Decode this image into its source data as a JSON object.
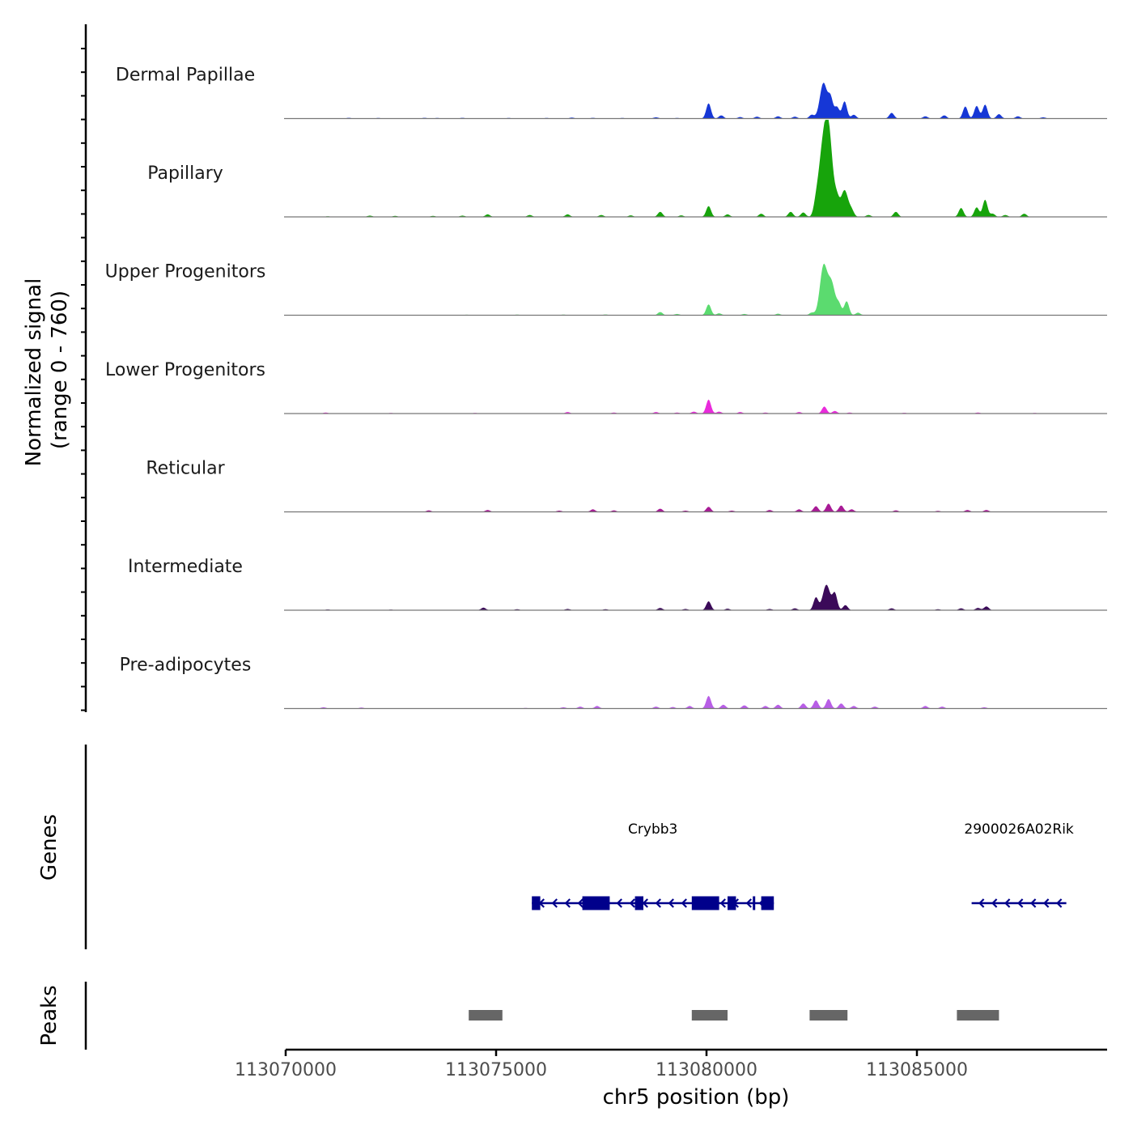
{
  "chart_data": {
    "type": "area",
    "title": "",
    "ylabel_line1": "Normalized signal",
    "ylabel_line2": "(range 0 - 760)",
    "y_range": [
      0,
      760
    ],
    "xlabel": "chr5 position (bp)",
    "xlim": [
      113070000,
      113089500
    ],
    "x_ticks": [
      113070000,
      113075000,
      113080000,
      113085000
    ],
    "x_tick_labels": [
      "113070000",
      "113075000",
      "113080000",
      "113085000"
    ],
    "tracks": [
      {
        "name": "Dermal Papillae",
        "color": "#1637d6",
        "peaks": [
          [
            113071500,
            6
          ],
          [
            113072200,
            5
          ],
          [
            113073300,
            6
          ],
          [
            113073600,
            5
          ],
          [
            113074200,
            6
          ],
          [
            113075300,
            5
          ],
          [
            113076200,
            5
          ],
          [
            113076800,
            8
          ],
          [
            113077300,
            6
          ],
          [
            113078000,
            5
          ],
          [
            113078800,
            10
          ],
          [
            113079300,
            5
          ],
          [
            113080050,
            120
          ],
          [
            113080350,
            25
          ],
          [
            113080800,
            12
          ],
          [
            113081200,
            15
          ],
          [
            113081700,
            18
          ],
          [
            113082100,
            15
          ],
          [
            113082500,
            30
          ],
          [
            113082780,
            280
          ],
          [
            113082950,
            150
          ],
          [
            113083100,
            90
          ],
          [
            113083280,
            135
          ],
          [
            113083500,
            30
          ],
          [
            113084400,
            45
          ],
          [
            113085200,
            18
          ],
          [
            113085650,
            25
          ],
          [
            113086150,
            95
          ],
          [
            113086420,
            100
          ],
          [
            113086620,
            110
          ],
          [
            113086950,
            35
          ],
          [
            113087400,
            18
          ],
          [
            113088000,
            10
          ]
        ]
      },
      {
        "name": "Papillary",
        "color": "#17a40b",
        "peaks": [
          [
            113071000,
            5
          ],
          [
            113072000,
            10
          ],
          [
            113072600,
            8
          ],
          [
            113073500,
            8
          ],
          [
            113074200,
            10
          ],
          [
            113074800,
            20
          ],
          [
            113075800,
            15
          ],
          [
            113076700,
            20
          ],
          [
            113077500,
            15
          ],
          [
            113078200,
            12
          ],
          [
            113078900,
            40
          ],
          [
            113079400,
            12
          ],
          [
            113080050,
            85
          ],
          [
            113080500,
            20
          ],
          [
            113081300,
            25
          ],
          [
            113082000,
            40
          ],
          [
            113082300,
            35
          ],
          [
            113082600,
            80
          ],
          [
            113082730,
            380
          ],
          [
            113082860,
            520
          ],
          [
            113082950,
            300
          ],
          [
            113083100,
            110
          ],
          [
            113083280,
            210
          ],
          [
            113083450,
            45
          ],
          [
            113083850,
            15
          ],
          [
            113084500,
            40
          ],
          [
            113086050,
            70
          ],
          [
            113086420,
            75
          ],
          [
            113086620,
            135
          ],
          [
            113086800,
            25
          ],
          [
            113087100,
            15
          ],
          [
            113087550,
            25
          ]
        ]
      },
      {
        "name": "Upper Progenitors",
        "color": "#5bdb6f",
        "peaks": [
          [
            113072500,
            3
          ],
          [
            113074300,
            4
          ],
          [
            113075500,
            5
          ],
          [
            113076600,
            5
          ],
          [
            113077600,
            6
          ],
          [
            113078900,
            25
          ],
          [
            113079300,
            10
          ],
          [
            113080050,
            85
          ],
          [
            113080300,
            15
          ],
          [
            113080900,
            10
          ],
          [
            113081700,
            12
          ],
          [
            113082500,
            20
          ],
          [
            113082780,
            380
          ],
          [
            113082970,
            250
          ],
          [
            113083150,
            80
          ],
          [
            113083330,
            110
          ],
          [
            113083600,
            20
          ]
        ]
      },
      {
        "name": "Lower Progenitors",
        "color": "#e92bdb",
        "peaks": [
          [
            113070950,
            8
          ],
          [
            113072500,
            5
          ],
          [
            113074500,
            5
          ],
          [
            113076700,
            12
          ],
          [
            113077800,
            8
          ],
          [
            113078800,
            12
          ],
          [
            113079300,
            8
          ],
          [
            113079700,
            15
          ],
          [
            113080050,
            110
          ],
          [
            113080300,
            15
          ],
          [
            113080800,
            12
          ],
          [
            113081400,
            8
          ],
          [
            113082200,
            12
          ],
          [
            113082800,
            55
          ],
          [
            113083050,
            20
          ],
          [
            113083400,
            8
          ],
          [
            113084700,
            6
          ],
          [
            113086450,
            8
          ],
          [
            113087800,
            5
          ]
        ]
      },
      {
        "name": "Reticular",
        "color": "#a81b96",
        "peaks": [
          [
            113073400,
            12
          ],
          [
            113074800,
            15
          ],
          [
            113076500,
            10
          ],
          [
            113077300,
            20
          ],
          [
            113077800,
            12
          ],
          [
            113078900,
            25
          ],
          [
            113079500,
            10
          ],
          [
            113080050,
            40
          ],
          [
            113080600,
            10
          ],
          [
            113081500,
            15
          ],
          [
            113082200,
            20
          ],
          [
            113082600,
            45
          ],
          [
            113082900,
            65
          ],
          [
            113083200,
            50
          ],
          [
            113083450,
            20
          ],
          [
            113084500,
            12
          ],
          [
            113085500,
            8
          ],
          [
            113086200,
            15
          ],
          [
            113086650,
            15
          ]
        ]
      },
      {
        "name": "Intermediate",
        "color": "#3b0a59",
        "peaks": [
          [
            113071000,
            6
          ],
          [
            113072500,
            5
          ],
          [
            113074700,
            20
          ],
          [
            113075500,
            8
          ],
          [
            113076700,
            10
          ],
          [
            113077600,
            8
          ],
          [
            113078900,
            18
          ],
          [
            113079500,
            10
          ],
          [
            113080050,
            70
          ],
          [
            113080500,
            12
          ],
          [
            113081500,
            10
          ],
          [
            113082100,
            15
          ],
          [
            113082600,
            100
          ],
          [
            113082850,
            200
          ],
          [
            113083050,
            130
          ],
          [
            113083300,
            40
          ],
          [
            113084400,
            15
          ],
          [
            113085500,
            8
          ],
          [
            113086050,
            15
          ],
          [
            113086450,
            18
          ],
          [
            113086650,
            30
          ]
        ]
      },
      {
        "name": "Pre-adipocytes",
        "color": "#b85ee6",
        "peaks": [
          [
            113070900,
            10
          ],
          [
            113071800,
            8
          ],
          [
            113075700,
            5
          ],
          [
            113076600,
            10
          ],
          [
            113077000,
            15
          ],
          [
            113077400,
            20
          ],
          [
            113078800,
            15
          ],
          [
            113079200,
            12
          ],
          [
            113079600,
            20
          ],
          [
            113080050,
            100
          ],
          [
            113080400,
            30
          ],
          [
            113080900,
            25
          ],
          [
            113081400,
            20
          ],
          [
            113081700,
            30
          ],
          [
            113082300,
            40
          ],
          [
            113082600,
            65
          ],
          [
            113082900,
            75
          ],
          [
            113083200,
            40
          ],
          [
            113083500,
            20
          ],
          [
            113084000,
            15
          ],
          [
            113085200,
            20
          ],
          [
            113085600,
            15
          ],
          [
            113086600,
            10
          ]
        ]
      }
    ],
    "genes_label": "Genes",
    "genes": [
      {
        "name": "Crybb3",
        "start": 113075850,
        "end": 113081600,
        "strand": "-",
        "exons": [
          [
            113075850,
            113076050
          ],
          [
            113077050,
            113077700
          ],
          [
            113078300,
            113078500
          ],
          [
            113079650,
            113080300
          ],
          [
            113080500,
            113080700
          ],
          [
            113081100,
            113081150
          ],
          [
            113081300,
            113081600
          ]
        ]
      },
      {
        "name": "2900026A02Rik",
        "start": 113086300,
        "end": 113088550,
        "strand": "-",
        "exons": []
      }
    ],
    "peaks_label": "Peaks",
    "peak_regions": [
      [
        113074350,
        113075150
      ],
      [
        113079650,
        113080500
      ],
      [
        113082450,
        113083350
      ],
      [
        113085950,
        113086950
      ]
    ]
  }
}
